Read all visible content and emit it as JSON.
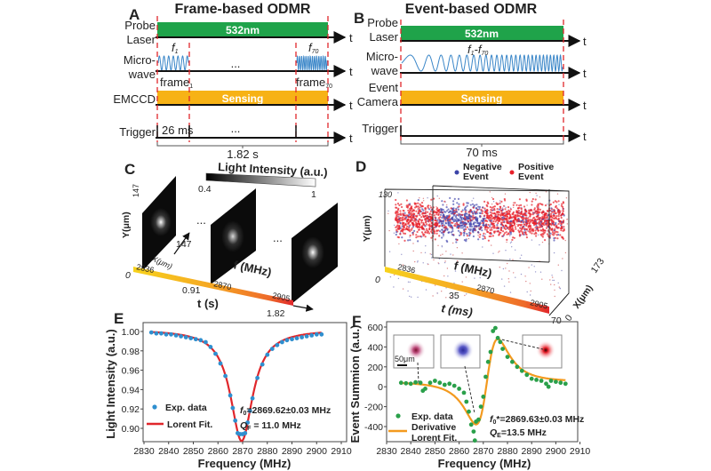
{
  "panel_a": {
    "letter": "A",
    "title": "Frame-based ODMR",
    "rows": {
      "laser": [
        "Probe",
        "Laser"
      ],
      "microwave": [
        "Micro-",
        "wave"
      ],
      "camera": [
        "EMCCD"
      ],
      "trigger": [
        "Trigger"
      ]
    },
    "laser_label": "532nm",
    "sensing_label": "Sensing",
    "f_first": "f",
    "f_first_sub": "1",
    "f_last": "f",
    "f_last_sub": "70",
    "frame_first": "frame",
    "frame_first_sub": "1",
    "frame_last": "frame",
    "frame_last_sub": "70",
    "ellipsis": "...",
    "trigger_interval": "26 ms",
    "total_time": "1.82 s",
    "axis_t": "t"
  },
  "panel_b": {
    "letter": "B",
    "title": "Event-based ODMR",
    "rows": {
      "laser": [
        "Probe",
        "Laser"
      ],
      "microwave": [
        "Micro-",
        "wave"
      ],
      "camera": [
        "Event",
        "Camera"
      ],
      "trigger": [
        "Trigger"
      ]
    },
    "laser_label": "532nm",
    "sensing_label": "Sensing",
    "sweep_label": "f",
    "sweep_sub1": "1",
    "sweep_dash": "-f",
    "sweep_sub2": "70",
    "total_time": "70 ms",
    "axis_t": "t"
  },
  "panel_c": {
    "letter": "C",
    "colorbar_title": "Light Intensity (a.u.)",
    "colorbar_min": "0.4",
    "colorbar_max": "1",
    "y_label": "Y(μm)",
    "y_max": "147",
    "x_label": "X(μm)",
    "x_max": "147",
    "t_label": "t (s)",
    "t_ticks": [
      "0",
      "0.91",
      "1.82"
    ],
    "f_label": "f (MHz)",
    "f_ticks": [
      "2836",
      "2870",
      "2905"
    ],
    "ellipsis": "..."
  },
  "panel_d": {
    "letter": "D",
    "legend": [
      {
        "label": [
          "Negative",
          "Event"
        ],
        "color": "#3b44a8"
      },
      {
        "label": [
          "Positive",
          "Event"
        ],
        "color": "#e8202a"
      }
    ],
    "y_label": "Y(μm)",
    "y_max": "130",
    "x_label": "X(μm)",
    "x_max": "173",
    "x_min": "0",
    "t_label": "t (ms)",
    "t_ticks": [
      "0",
      "35",
      "70"
    ],
    "f_label": "f (MHz)",
    "f_ticks": [
      "2836",
      "2870",
      "2905"
    ]
  },
  "chart_data": [
    {
      "panel": "E",
      "type": "scatter",
      "xlabel": "Frequency (MHz)",
      "ylabel": "Light Intensity (a.u.)",
      "xlim": [
        2830,
        2910
      ],
      "ylim": [
        0.886,
        1.009
      ],
      "xticks": [
        2830,
        2840,
        2850,
        2860,
        2870,
        2880,
        2890,
        2900,
        2910
      ],
      "yticks": [
        "0.90",
        "0.92",
        "0.94",
        "0.96",
        "0.98",
        "1.00"
      ],
      "series": [
        {
          "name": "Exp. data",
          "type": "scatter",
          "color": "#2f8fcf",
          "x": [
            2833,
            2835,
            2837,
            2839,
            2841,
            2843,
            2845,
            2847,
            2849,
            2851,
            2853,
            2855,
            2857,
            2859,
            2861,
            2863,
            2865,
            2866,
            2867,
            2868,
            2869,
            2870,
            2871,
            2872,
            2873,
            2874,
            2876,
            2878,
            2880,
            2882,
            2884,
            2886,
            2888,
            2890,
            2892,
            2894,
            2896,
            2898,
            2900,
            2902
          ],
          "y": [
            0.999,
            0.998,
            0.998,
            0.997,
            0.997,
            0.996,
            0.995,
            0.994,
            0.993,
            0.992,
            0.991,
            0.989,
            0.984,
            0.977,
            0.967,
            0.954,
            0.934,
            0.921,
            0.908,
            0.895,
            0.894,
            0.894,
            0.895,
            0.906,
            0.918,
            0.931,
            0.952,
            0.966,
            0.976,
            0.982,
            0.986,
            0.989,
            0.991,
            0.992,
            0.993,
            0.994,
            0.995,
            0.996,
            0.997,
            0.997
          ]
        },
        {
          "name": "Lorent Fit.",
          "type": "line",
          "color": "#e0262b"
        }
      ],
      "annotations": {
        "f_text": "f",
        "f_sub": "0",
        "f_value": "=2869.62±0.03 MHz",
        "q_text": "Q",
        "q_sub": "F",
        "q_value": " = 11.0 MHz"
      }
    },
    {
      "panel": "F",
      "type": "scatter",
      "xlabel": "Frequency (MHz)",
      "ylabel": "Event Summion (a.u.)",
      "xlim": [
        2830,
        2910
      ],
      "ylim": [
        -570,
        635
      ],
      "xticks": [
        2830,
        2840,
        2850,
        2860,
        2870,
        2880,
        2890,
        2900,
        2910
      ],
      "yticks": [
        -400,
        -200,
        0,
        200,
        400,
        600
      ],
      "series": [
        {
          "name": "Exp. data",
          "type": "scatter",
          "color": "#2aa04a",
          "x": [
            2836,
            2838,
            2840,
            2842,
            2844,
            2845,
            2846,
            2848,
            2850,
            2852,
            2854,
            2856,
            2858,
            2860,
            2862,
            2863,
            2864,
            2865,
            2866,
            2866.5,
            2867,
            2868,
            2869,
            2870,
            2871,
            2872,
            2873,
            2874,
            2875,
            2876,
            2877,
            2878,
            2880,
            2882,
            2884,
            2886,
            2888,
            2890,
            2892,
            2894,
            2896,
            2897,
            2898,
            2900,
            2902,
            2904
          ],
          "y": [
            40,
            35,
            30,
            45,
            40,
            -40,
            -20,
            40,
            60,
            40,
            20,
            30,
            10,
            -20,
            -60,
            -150,
            -250,
            -380,
            -450,
            -540,
            -350,
            -330,
            -200,
            -100,
            100,
            250,
            350,
            560,
            590,
            490,
            450,
            380,
            300,
            250,
            200,
            160,
            120,
            80,
            70,
            60,
            30,
            0,
            60,
            50,
            40,
            30
          ]
        },
        {
          "name": "Derivative Lorent Fit.",
          "type": "line",
          "color": "#f39a1e"
        }
      ],
      "annotations": {
        "f_text": "f",
        "f_sub": "0",
        "f_value": "*=2869.63±0.03 MHz",
        "q_text": "Q",
        "q_sub": "E",
        "q_value": "=13.5 MHz",
        "scale_bar": "50μm"
      }
    }
  ],
  "panel_e": {
    "letter": "E"
  },
  "panel_f": {
    "letter": "F"
  }
}
